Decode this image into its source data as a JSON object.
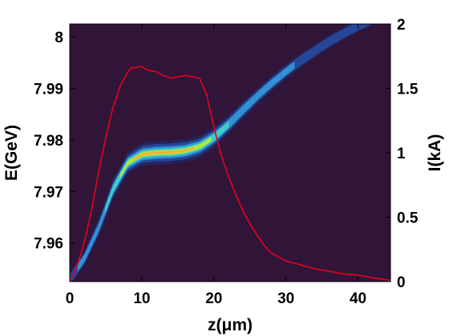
{
  "chart_data": {
    "type": "scatter",
    "colors": {
      "background": "#301539",
      "current_line": "#e8001a"
    },
    "x_axis": {
      "label": "z(μm)",
      "range": [
        0,
        44.5
      ],
      "ticks": [
        0,
        10,
        20,
        30,
        40
      ]
    },
    "y_axis_left": {
      "label": "E(GeV)",
      "range": [
        7.9525,
        8.0025
      ],
      "ticks": [
        7.96,
        7.97,
        7.98,
        7.99,
        8
      ]
    },
    "y_axis_right": {
      "label": "I(kA)",
      "range": [
        0,
        2
      ],
      "ticks": [
        0,
        0.5,
        1,
        1.5,
        2
      ],
      "tick_labels": [
        "0",
        "0.5",
        "1",
        "1.5",
        "2"
      ]
    },
    "phase_space": {
      "description_kind": "density",
      "centerline_z": [
        0,
        2,
        4,
        6,
        8,
        10,
        12,
        14,
        16,
        18,
        20,
        22,
        24,
        26,
        28,
        30,
        32,
        34,
        36,
        38,
        40,
        42,
        44.5
      ],
      "centerline_E": [
        7.953,
        7.957,
        7.963,
        7.9705,
        7.9755,
        7.9772,
        7.9775,
        7.9776,
        7.9779,
        7.9787,
        7.9805,
        7.983,
        7.9858,
        7.9885,
        7.991,
        7.9933,
        7.9954,
        7.9973,
        7.9991,
        8.0007,
        8.0021,
        8.0034,
        8.0042
      ],
      "relative_density": [
        0.2,
        0.3,
        0.45,
        0.7,
        0.85,
        0.95,
        1.0,
        0.98,
        0.92,
        0.85,
        0.72,
        0.55,
        0.45,
        0.38,
        0.32,
        0.27,
        0.23,
        0.19,
        0.16,
        0.13,
        0.1,
        0.08,
        0.06
      ]
    },
    "current_profile": {
      "name": "I(kA)",
      "z": [
        0,
        1,
        2,
        3,
        4,
        5,
        6,
        7,
        8,
        8.5,
        9,
        10,
        10.5,
        11,
        12,
        13,
        14,
        15,
        16,
        17,
        18,
        19,
        20,
        21,
        22,
        23,
        24,
        25,
        26,
        27,
        28,
        29,
        30,
        32,
        34,
        36,
        38,
        40,
        42,
        44.5
      ],
      "I_kA": [
        0,
        0.12,
        0.3,
        0.55,
        0.85,
        1.12,
        1.35,
        1.52,
        1.62,
        1.66,
        1.66,
        1.67,
        1.65,
        1.64,
        1.63,
        1.6,
        1.58,
        1.59,
        1.6,
        1.59,
        1.58,
        1.45,
        1.2,
        0.98,
        0.82,
        0.68,
        0.55,
        0.45,
        0.36,
        0.28,
        0.22,
        0.19,
        0.16,
        0.13,
        0.1,
        0.08,
        0.06,
        0.05,
        0.03,
        0.01
      ]
    }
  }
}
